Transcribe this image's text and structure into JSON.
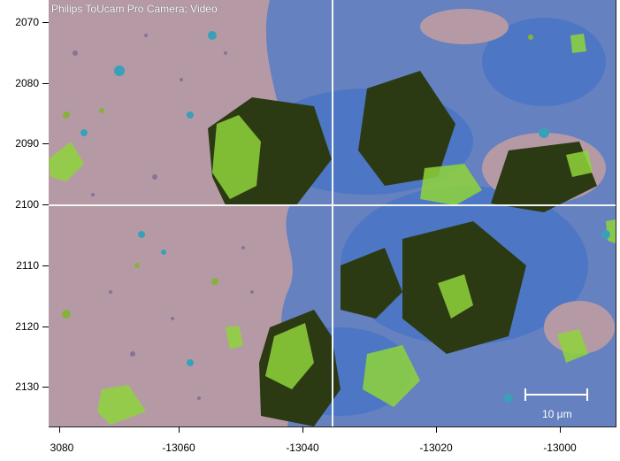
{
  "viewer": {
    "camera_title": "Philips ToUcam Pro Camera; Video",
    "scale_bar_label": "10 μm"
  },
  "y_axis": {
    "ticks": [
      {
        "label": "2070"
      },
      {
        "label": "2080"
      },
      {
        "label": "2090"
      },
      {
        "label": "2100"
      },
      {
        "label": "2110"
      },
      {
        "label": "2120"
      },
      {
        "label": "2130"
      }
    ]
  },
  "x_axis": {
    "ticks": [
      {
        "label": "3080"
      },
      {
        "label": "-13060"
      },
      {
        "label": "-13040"
      },
      {
        "label": "-13020"
      },
      {
        "label": "-13000"
      }
    ]
  },
  "colors": {
    "substrate": "#b59aa6",
    "crystal_green": "#8fd43a",
    "crystal_dark": "#2c3a14",
    "particle_blue": "#3a6fc9"
  }
}
